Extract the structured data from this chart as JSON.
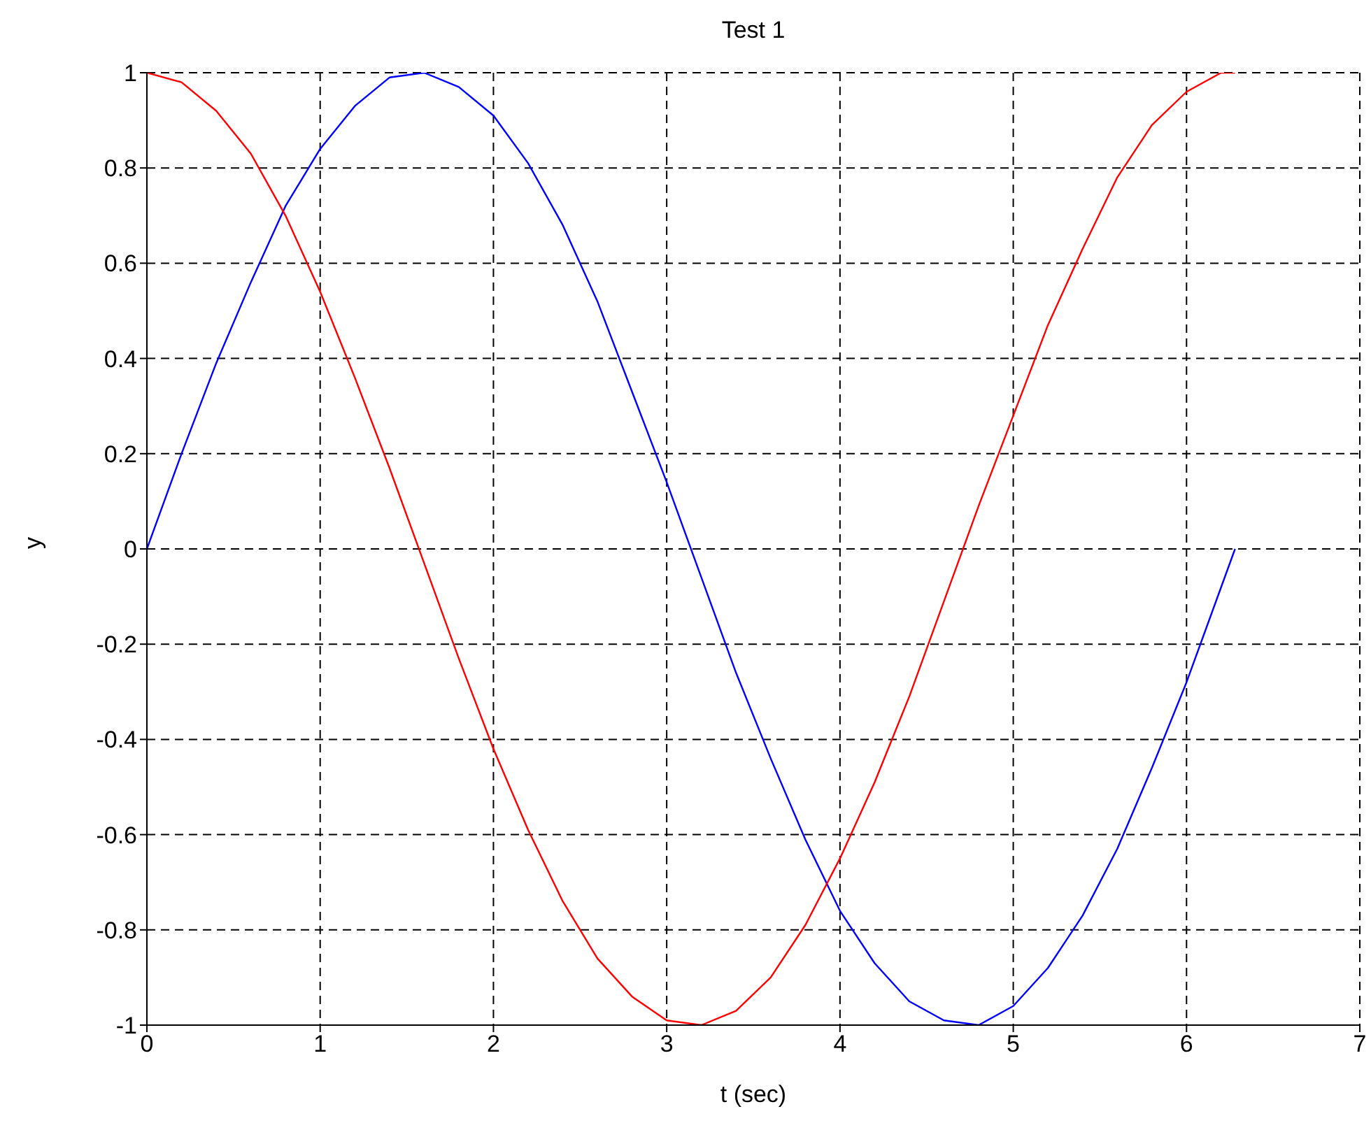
{
  "chart_data": {
    "type": "line",
    "title": "Test 1",
    "xlabel": "t (sec)",
    "ylabel": "y",
    "x": [
      0,
      0.2,
      0.4,
      0.6,
      0.8,
      1.0,
      1.2,
      1.4,
      1.6,
      1.8,
      2.0,
      2.2,
      2.4,
      2.6,
      2.8,
      3.0,
      3.2,
      3.4,
      3.6,
      3.8,
      4.0,
      4.2,
      4.4,
      4.6,
      4.8,
      5.0,
      5.2,
      5.4,
      5.6,
      5.8,
      6.0,
      6.2,
      6.28
    ],
    "series": [
      {
        "color": "#0000ff",
        "values": [
          0,
          0.2,
          0.39,
          0.56,
          0.72,
          0.84,
          0.93,
          0.99,
          1.0,
          0.97,
          0.91,
          0.81,
          0.68,
          0.52,
          0.33,
          0.14,
          -0.06,
          -0.26,
          -0.44,
          -0.61,
          -0.76,
          -0.87,
          -0.95,
          -0.99,
          -1.0,
          -0.96,
          -0.88,
          -0.77,
          -0.63,
          -0.46,
          -0.28,
          -0.08,
          0
        ]
      },
      {
        "color": "#ff0000",
        "values": [
          1.0,
          0.98,
          0.92,
          0.83,
          0.7,
          0.54,
          0.36,
          0.17,
          -0.03,
          -0.23,
          -0.42,
          -0.59,
          -0.74,
          -0.86,
          -0.94,
          -0.99,
          -1.0,
          -0.97,
          -0.9,
          -0.79,
          -0.65,
          -0.49,
          -0.31,
          -0.11,
          0.09,
          0.28,
          0.47,
          0.63,
          0.78,
          0.89,
          0.96,
          1.0,
          1.0
        ]
      }
    ],
    "xlim": [
      0,
      7
    ],
    "xticks": [
      0,
      1,
      2,
      3,
      4,
      5,
      6,
      7
    ],
    "ylim": [
      -1,
      1
    ],
    "yticks": [
      -1,
      -0.8,
      -0.6,
      -0.4,
      -0.2,
      0,
      0.2,
      0.4,
      0.6,
      0.8,
      1
    ],
    "grid": true,
    "legend": false,
    "marker": "none",
    "line_style": "solid"
  }
}
